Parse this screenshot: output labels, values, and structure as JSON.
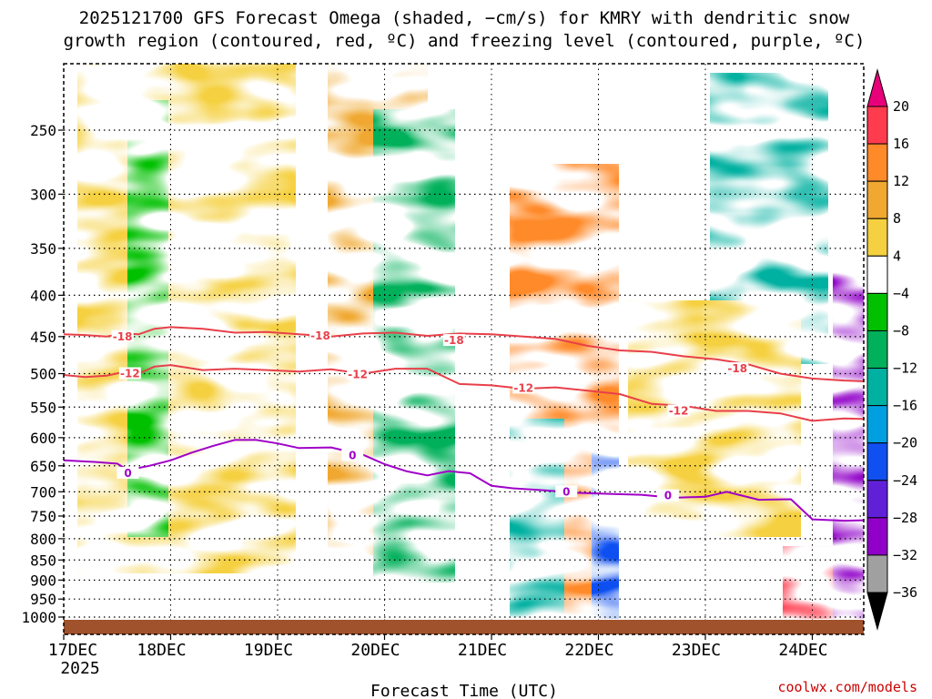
{
  "chart_data": {
    "type": "heatmap",
    "title_line1": "2025121700 GFS Forecast Omega (shaded, −cm/s) for KMRY with dendritic snow",
    "title_line2": "growth region (contoured, red, ºC) and freezing level (contoured, purple, ºC)",
    "xlabel": "Forecast Time (UTC)",
    "credit": "coolwx.com/models",
    "x_ticks": [
      "17DEC",
      "18DEC",
      "19DEC",
      "20DEC",
      "21DEC",
      "22DEC",
      "23DEC",
      "24DEC"
    ],
    "x_year": "2025",
    "x_range_days": [
      0,
      7.65
    ],
    "y_ticks": [
      "250",
      "300",
      "350",
      "400",
      "450",
      "500",
      "550",
      "600",
      "650",
      "700",
      "750",
      "800",
      "850",
      "900",
      "950",
      "1000"
    ],
    "y_range_hpa": [
      200,
      1020
    ],
    "colorbar": {
      "labels": [
        "20",
        "16",
        "12",
        "8",
        "4",
        "−4",
        "−8",
        "−12",
        "−16",
        "−20",
        "−24",
        "−28",
        "−32",
        "−36"
      ],
      "colors": [
        "#ff3c4e",
        "#ff8a2a",
        "#f0a830",
        "#f5d040",
        "#ffffff",
        "#00c000",
        "#00b05a",
        "#00b0a0",
        "#00a0e0",
        "#1050f0",
        "#6020d8",
        "#9000c8",
        "#a0a0a0"
      ],
      "top_color": "#e8007a",
      "bottom_color": "#000000"
    },
    "contours": [
      {
        "name": "-18",
        "color": "#e8404a",
        "x": [
          0,
          0.2,
          0.4,
          0.55,
          0.7,
          0.85,
          1.0,
          1.3,
          1.6,
          1.9,
          2.2,
          2.5,
          2.8,
          3.1,
          3.4,
          3.7,
          4.0,
          4.3,
          4.6,
          4.9,
          5.2,
          5.5,
          5.8,
          6.1,
          6.4,
          6.7,
          7.0,
          7.3,
          7.65
        ],
        "y": [
          447,
          448,
          450,
          446,
          447,
          440,
          438,
          440,
          445,
          444,
          447,
          450,
          446,
          445,
          449,
          446,
          447,
          450,
          453,
          462,
          468,
          470,
          476,
          480,
          487,
          500,
          507,
          510,
          512
        ],
        "labels": [
          {
            "x": 0.55,
            "y": 450,
            "text": "-18"
          },
          {
            "x": 2.4,
            "y": 449,
            "text": "-18"
          },
          {
            "x": 3.65,
            "y": 455,
            "text": "-18"
          },
          {
            "x": 6.3,
            "y": 493,
            "text": "-18"
          }
        ]
      },
      {
        "name": "-12",
        "color": "#e8404a",
        "x": [
          0,
          0.2,
          0.4,
          0.55,
          0.7,
          0.85,
          1.0,
          1.3,
          1.6,
          1.9,
          2.2,
          2.5,
          2.8,
          3.1,
          3.4,
          3.7,
          4.0,
          4.3,
          4.6,
          4.9,
          5.2,
          5.5,
          5.8,
          6.1,
          6.4,
          6.7,
          7.0,
          7.3,
          7.65
        ],
        "y": [
          502,
          505,
          503,
          498,
          500,
          490,
          488,
          495,
          493,
          495,
          497,
          494,
          500,
          493,
          493,
          515,
          517,
          522,
          520,
          525,
          530,
          545,
          548,
          556,
          556,
          560,
          572,
          568,
          570
        ],
        "labels": [
          {
            "x": 0.62,
            "y": 500,
            "text": "-12"
          },
          {
            "x": 2.75,
            "y": 501,
            "text": "-12"
          },
          {
            "x": 4.3,
            "y": 521,
            "text": "-12"
          },
          {
            "x": 5.75,
            "y": 556,
            "text": "-12"
          }
        ]
      },
      {
        "name": "0",
        "color": "#a000c8",
        "x": [
          0,
          0.3,
          0.5,
          0.6,
          0.8,
          1.0,
          1.2,
          1.4,
          1.6,
          1.8,
          2.0,
          2.2,
          2.5,
          2.8,
          3.0,
          3.2,
          3.4,
          3.6,
          3.8,
          4.0,
          4.2,
          4.5,
          4.8,
          5.1,
          5.4,
          5.7,
          6.0,
          6.2,
          6.5,
          6.8,
          7.0,
          7.3,
          7.65
        ],
        "y": [
          640,
          643,
          646,
          658,
          650,
          640,
          626,
          614,
          604,
          604,
          610,
          618,
          617,
          630,
          647,
          660,
          668,
          660,
          664,
          688,
          693,
          697,
          702,
          704,
          706,
          712,
          710,
          700,
          716,
          715,
          757,
          760,
          758
        ],
        "labels": [
          {
            "x": 0.6,
            "y": 664,
            "text": "0"
          },
          {
            "x": 2.7,
            "y": 631,
            "text": "0"
          },
          {
            "x": 4.7,
            "y": 700,
            "text": "0"
          },
          {
            "x": 5.65,
            "y": 708,
            "text": "0"
          }
        ]
      }
    ]
  }
}
